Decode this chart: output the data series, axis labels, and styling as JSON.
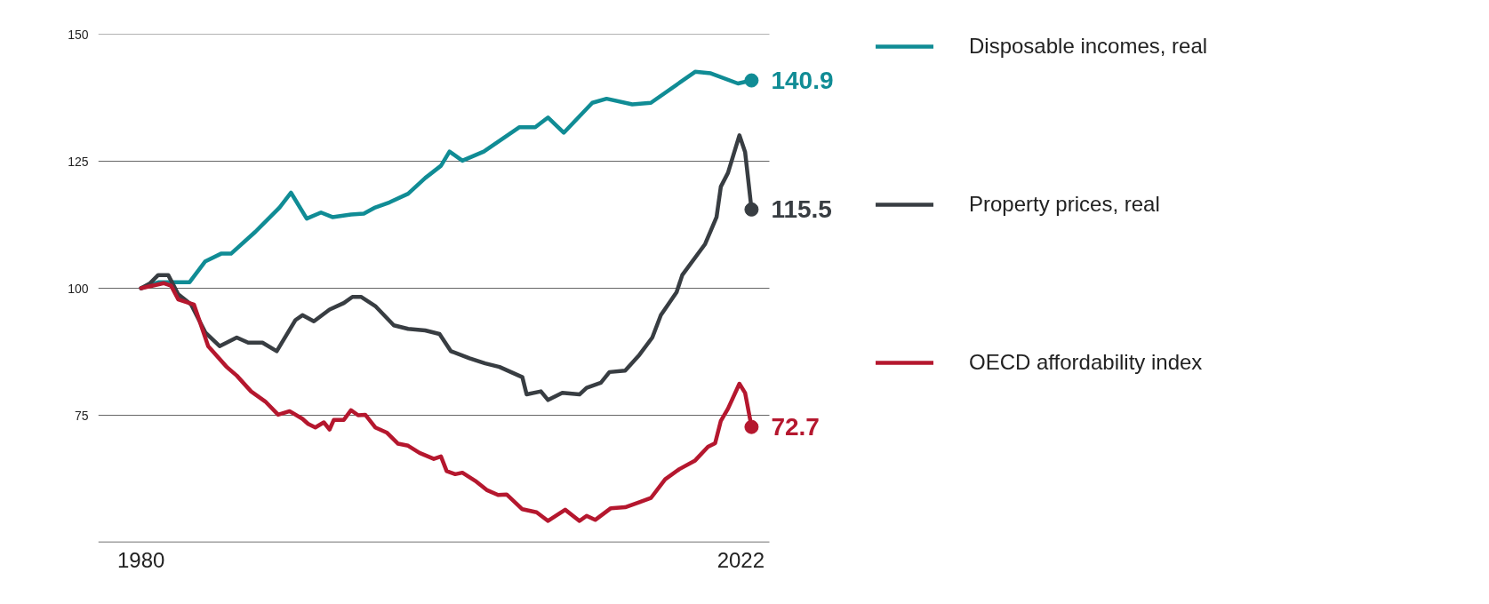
{
  "chart_data": {
    "type": "line",
    "xlim": [
      1977,
      2024
    ],
    "xticks": [
      1980,
      2022
    ],
    "ylim": [
      50,
      150
    ],
    "yticks": [
      75,
      100,
      125,
      150
    ],
    "grid": "y",
    "legend": "right",
    "line_style": "solid",
    "series": [
      {
        "name": "Disposable incomes, real",
        "color": "#108c95",
        "value_labels": [
          null,
          null,
          null,
          null,
          null,
          null,
          null,
          null,
          null,
          null,
          null,
          null,
          null,
          null,
          null,
          null,
          null,
          null,
          null,
          null,
          null,
          null,
          null,
          null,
          null,
          null,
          null,
          null,
          null,
          null,
          null,
          null,
          null,
          "140.9"
        ],
        "x": [
          1980,
          1981.25,
          1983.4,
          1984.5,
          1985.6,
          1986.3,
          1988.0,
          1989.7,
          1990.5,
          1991.6,
          1992.6,
          1993.4,
          1994.7,
          1995.6,
          1996.4,
          1997.4,
          1998.7,
          1999.9,
          2001.0,
          2001.6,
          2002.5,
          2004.0,
          2006.5,
          2007.6,
          2008.5,
          2009.6,
          2011.6,
          2012.6,
          2014.4,
          2015.7,
          2018.8,
          2019.9,
          2021.8,
          2022.75
        ],
        "values": [
          100,
          101.2,
          101.2,
          105.3,
          106.8,
          106.8,
          111.1,
          115.9,
          118.8,
          113.7,
          114.9,
          114.0,
          114.5,
          114.7,
          115.9,
          116.9,
          118.6,
          121.7,
          124.1,
          126.9,
          125.1,
          126.9,
          131.7,
          131.7,
          133.6,
          130.6,
          136.5,
          137.3,
          136.2,
          136.5,
          142.6,
          142.3,
          140.3,
          140.9
        ]
      },
      {
        "name": "Property prices, real",
        "color": "#383d42",
        "value_labels": [
          null,
          null,
          null,
          null,
          null,
          null,
          null,
          null,
          null,
          null,
          null,
          null,
          null,
          null,
          null,
          null,
          null,
          null,
          null,
          null,
          null,
          null,
          null,
          null,
          null,
          null,
          null,
          null,
          null,
          null,
          null,
          null,
          null,
          null,
          null,
          null,
          null,
          null,
          null,
          null,
          null,
          null,
          null,
          null,
          null,
          null,
          null,
          null,
          null,
          "115.5"
        ],
        "x": [
          1980,
          1980.6,
          1981.2,
          1981.9,
          1982.6,
          1983.5,
          1984.5,
          1985.5,
          1986.7,
          1987.5,
          1988.5,
          1989.5,
          1990.8,
          1991.3,
          1992.1,
          1993.2,
          1994.2,
          1994.8,
          1995.4,
          1996.4,
          1997.7,
          1998.7,
          1999.9,
          2000.9,
          2001.7,
          2003.0,
          2004.1,
          2005.1,
          2006.7,
          2007.0,
          2008.0,
          2008.5,
          2009.5,
          2010.7,
          2011.2,
          2012.2,
          2012.8,
          2013.9,
          2014.9,
          2015.8,
          2016.4,
          2017.5,
          2017.9,
          2019.5,
          2020.3,
          2020.6,
          2021.1,
          2021.9,
          2022.3,
          2022.75
        ],
        "values": [
          100,
          100.9,
          102.6,
          102.6,
          98.8,
          96.8,
          91.3,
          88.6,
          90.3,
          89.3,
          89.3,
          87.6,
          93.7,
          94.7,
          93.5,
          95.8,
          97.1,
          98.3,
          98.3,
          96.5,
          92.7,
          92.0,
          91.7,
          91.0,
          87.6,
          86.2,
          85.2,
          84.5,
          82.5,
          79.1,
          79.7,
          78.0,
          79.4,
          79.1,
          80.4,
          81.4,
          83.5,
          83.8,
          86.9,
          90.3,
          94.7,
          99.2,
          102.6,
          108.7,
          114.0,
          120.0,
          122.7,
          130.1,
          126.8,
          115.5
        ]
      },
      {
        "name": "OECD affordability index",
        "color": "#b5172e",
        "value_labels": [
          null,
          null,
          null,
          null,
          null,
          null,
          null,
          null,
          null,
          null,
          null,
          null,
          null,
          null,
          null,
          null,
          null,
          null,
          null,
          null,
          null,
          null,
          null,
          null,
          null,
          null,
          null,
          null,
          null,
          null,
          null,
          null,
          null,
          null,
          null,
          null,
          null,
          null,
          null,
          null,
          null,
          null,
          null,
          null,
          null,
          null,
          null,
          null,
          null,
          null,
          null,
          null,
          null,
          null,
          null,
          null,
          "72.7"
        ],
        "x": [
          1980,
          1981.6,
          1982.1,
          1982.6,
          1983.7,
          1984.7,
          1986.0,
          1986.7,
          1987.7,
          1988.7,
          1989.6,
          1990.4,
          1991.3,
          1991.7,
          1992.2,
          1992.8,
          1993.2,
          1993.5,
          1994.2,
          1994.7,
          1995.2,
          1995.7,
          1996.4,
          1997.2,
          1998.0,
          1998.7,
          1999.5,
          2000.5,
          2001.0,
          2001.4,
          2002.0,
          2002.5,
          2003.4,
          2004.2,
          2005.0,
          2005.6,
          2006.7,
          2007.7,
          2008.5,
          2009.7,
          2010.7,
          2011.2,
          2011.8,
          2012.9,
          2013.9,
          2014.9,
          2015.7,
          2016.7,
          2017.7,
          2018.8,
          2019.7,
          2020.2,
          2020.6,
          2021.1,
          2021.9,
          2022.3,
          2022.75
        ],
        "values": [
          100,
          101.0,
          100.5,
          97.8,
          96.8,
          88.6,
          84.5,
          82.8,
          79.7,
          77.7,
          75.1,
          75.8,
          74.3,
          73.3,
          72.6,
          73.6,
          72.2,
          74.1,
          74.1,
          76.0,
          75.0,
          75.1,
          72.6,
          71.6,
          69.4,
          69.0,
          67.6,
          66.4,
          66.9,
          64.0,
          63.4,
          63.7,
          62.1,
          60.3,
          59.3,
          59.4,
          56.5,
          55.9,
          54.2,
          56.4,
          54.2,
          55.2,
          54.4,
          56.7,
          56.9,
          57.9,
          58.7,
          62.4,
          64.4,
          66.1,
          68.8,
          69.5,
          73.9,
          76.3,
          81.2,
          79.4,
          72.7
        ]
      }
    ]
  }
}
